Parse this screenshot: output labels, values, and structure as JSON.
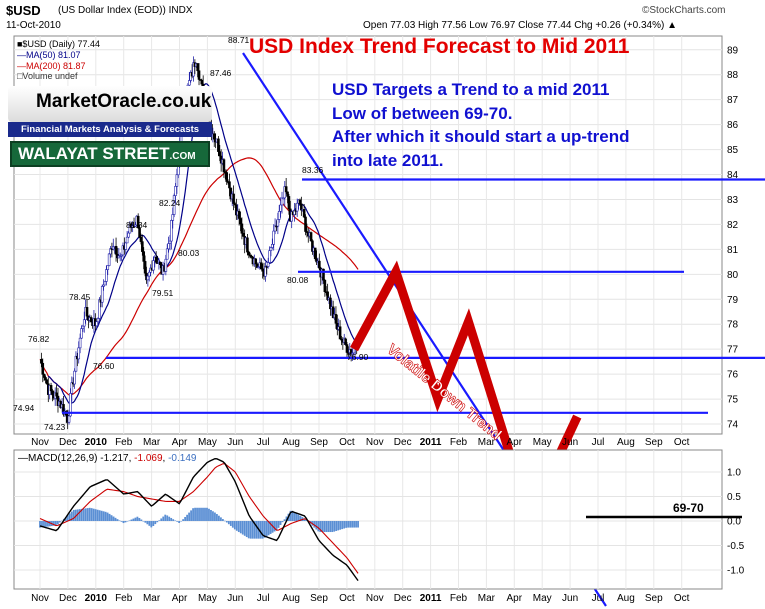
{
  "header": {
    "symbol": "$USD",
    "description": "(US Dollar Index (EOD))  INDX",
    "date": "11-Oct-2010",
    "ohlc": "Open 77.03  High 77.56  Low 76.97  Close 77.44  Chg +0.26 (+0.34%) ▲",
    "copyright": "©StockCharts.com"
  },
  "title": "USD Index Trend Forecast to Mid 2011",
  "annotation": [
    "USD Targets a Trend to a mid 2011",
    "Low of between 69-70.",
    "After which it should start a up-trend",
    "into late 2011."
  ],
  "logo": {
    "name": "MarketOracle.co.uk",
    "tagline": "Financial Markets Analysis & Forecasts",
    "street": "WALAYAT STREET",
    "street_suffix": ".COM"
  },
  "legend": {
    "main": "■$USD (Daily) 77.44",
    "ma50": "—MA(50) 81.07",
    "ma200": "—MA(200) 81.87",
    "volume": "□Volume undef"
  },
  "macd_legend": {
    "label": "—MACD(12,26,9) -1.217, ",
    "signal": "-1.069",
    "sep": ", ",
    "hist": "-0.149"
  },
  "labels": {
    "trend": "Volatile Down Trend",
    "target": "69-70"
  },
  "colors": {
    "price_up": "#2222aa",
    "price_down": "#000000",
    "ma50": "#000088",
    "ma200": "#cc0000",
    "trendline": "#1a1aff",
    "forecast": "#cc0000",
    "histogram": "#5b8fd4",
    "title": "#e30000"
  },
  "chart_data": [
    {
      "type": "line",
      "title": "$USD (Daily)",
      "x_ticks": [
        "Nov",
        "Dec",
        "2010",
        "Feb",
        "Mar",
        "Apr",
        "May",
        "Jun",
        "Jul",
        "Aug",
        "Sep",
        "Oct",
        "Nov",
        "Dec",
        "2011",
        "Feb",
        "Mar",
        "Apr",
        "May",
        "Jun",
        "Jul",
        "Aug",
        "Sep",
        "Oct"
      ],
      "y_ticks": [
        74,
        75,
        76,
        77,
        78,
        79,
        80,
        81,
        82,
        83,
        84,
        85,
        86,
        87,
        88,
        89
      ],
      "ylim": [
        73.5,
        89.3
      ],
      "series": [
        {
          "name": "$USD (Daily)",
          "x": [
            0.0,
            0.3,
            0.7,
            1.0,
            1.2,
            1.6,
            2.0,
            2.3,
            2.6,
            2.9,
            3.2,
            3.5,
            3.8,
            4.1,
            4.4,
            4.7,
            5.0,
            5.3,
            5.6,
            5.9,
            6.1,
            6.4,
            6.7,
            7.0,
            7.4,
            7.8,
            8.1,
            8.5,
            8.8,
            9.0,
            9.3,
            9.6,
            10.0,
            10.3,
            10.6,
            10.9,
            11.2,
            11.4
          ],
          "values": [
            76.6,
            75.4,
            74.9,
            74.23,
            75.9,
            78.45,
            78.0,
            79.7,
            81.34,
            80.6,
            81.8,
            82.24,
            79.51,
            80.8,
            80.03,
            81.8,
            85.0,
            87.46,
            88.71,
            86.8,
            86.0,
            85.1,
            83.9,
            82.6,
            81.2,
            80.3,
            80.08,
            82.1,
            83.36,
            82.2,
            82.9,
            81.6,
            80.4,
            79.2,
            78.0,
            77.2,
            76.9,
            77.44
          ]
        },
        {
          "name": "MA(50)",
          "values": [
            81.07
          ]
        },
        {
          "name": "MA(200)",
          "values": [
            81.87
          ]
        }
      ],
      "annotations": [
        "88.71",
        "87.46",
        "83.36",
        "82.24",
        "81.34",
        "80.03",
        "80.08",
        "79.51",
        "78.45",
        "76.82",
        "76.60",
        "76.90",
        "74.94",
        "74.23"
      ],
      "forecast_path": {
        "x": [
          11.4,
          12.9,
          14.4,
          15.5,
          17.7,
          19.4
        ],
        "values": [
          77.0,
          80.1,
          75.0,
          78.1,
          70.0,
          74.3
        ]
      },
      "horizontal_levels": [
        83.8,
        80.1,
        76.65,
        74.45
      ]
    },
    {
      "type": "line",
      "title": "MACD(12,26,9)",
      "y_ticks": [
        "1.0",
        "0.5",
        "0.0",
        "-0.5",
        "-1.0"
      ],
      "ylim": [
        -1.35,
        1.55
      ],
      "series": [
        {
          "name": "MACD",
          "x": [
            0.0,
            0.6,
            1.2,
            1.8,
            2.4,
            3.0,
            3.5,
            4.0,
            4.5,
            5.0,
            5.5,
            6.0,
            6.3,
            6.6,
            7.0,
            7.5,
            8.0,
            8.5,
            9.0,
            9.5,
            10.0,
            10.5,
            11.0,
            11.4
          ],
          "values": [
            -0.1,
            -0.2,
            0.3,
            0.7,
            0.85,
            0.55,
            0.6,
            0.3,
            0.55,
            0.35,
            0.9,
            1.2,
            1.28,
            1.2,
            0.8,
            0.1,
            -0.3,
            -0.4,
            0.2,
            0.1,
            -0.4,
            -0.7,
            -0.9,
            -1.217
          ]
        },
        {
          "name": "Signal",
          "x": [
            0.0,
            0.6,
            1.2,
            1.8,
            2.4,
            3.0,
            3.5,
            4.0,
            4.5,
            5.0,
            5.5,
            6.0,
            6.3,
            6.6,
            7.0,
            7.5,
            8.0,
            8.5,
            9.0,
            9.5,
            10.0,
            10.5,
            11.0,
            11.4
          ],
          "values": [
            0.05,
            -0.1,
            0.05,
            0.4,
            0.65,
            0.6,
            0.5,
            0.45,
            0.4,
            0.4,
            0.6,
            0.9,
            1.1,
            1.18,
            1.0,
            0.5,
            0.1,
            -0.2,
            -0.05,
            0.05,
            -0.15,
            -0.45,
            -0.75,
            -1.069
          ]
        }
      ],
      "target_label": "69-70"
    }
  ]
}
